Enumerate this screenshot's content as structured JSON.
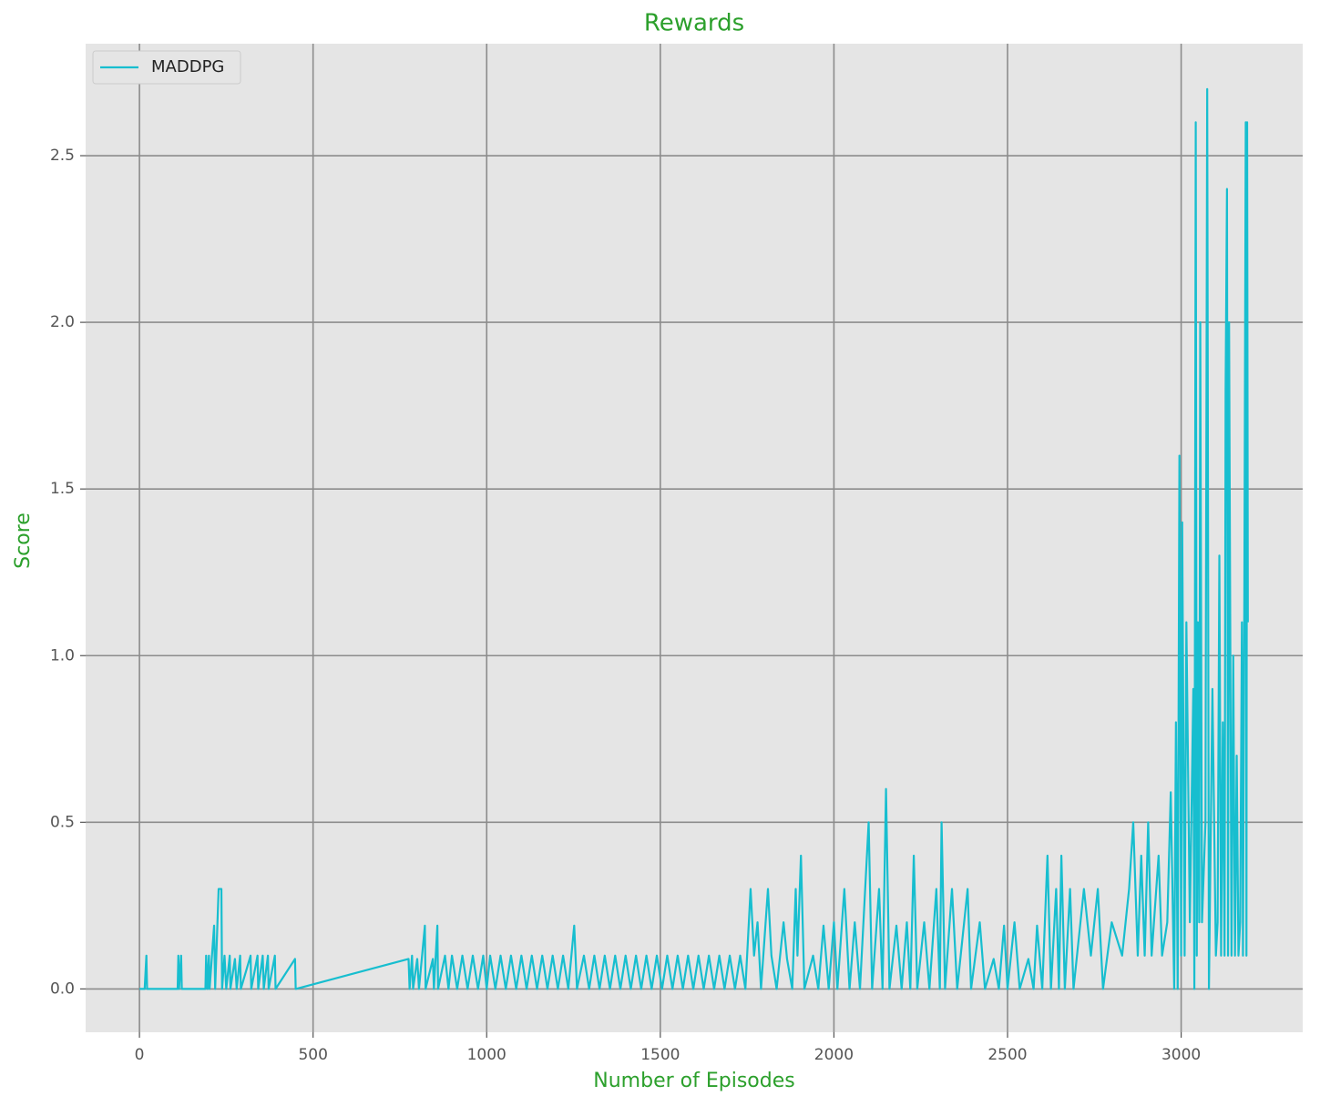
{
  "chart_data": {
    "type": "line",
    "title": "Rewards",
    "x_label": "Number of Episodes",
    "y_label": "Score",
    "x": [
      0,
      15,
      20,
      22,
      110,
      112,
      114,
      120,
      122,
      190,
      192,
      196,
      200,
      202,
      215,
      218,
      228,
      236,
      238,
      245,
      250,
      260,
      262,
      275,
      280,
      290,
      292,
      320,
      322,
      340,
      342,
      355,
      358,
      370,
      372,
      390,
      392,
      448,
      450,
      775,
      778,
      785,
      788,
      800,
      805,
      822,
      824,
      845,
      848,
      858,
      860,
      880,
      890,
      900,
      915,
      930,
      945,
      960,
      975,
      990,
      1000,
      1010,
      1025,
      1040,
      1055,
      1070,
      1085,
      1100,
      1115,
      1130,
      1145,
      1160,
      1175,
      1190,
      1205,
      1220,
      1235,
      1252,
      1260,
      1280,
      1295,
      1310,
      1325,
      1340,
      1355,
      1370,
      1385,
      1400,
      1415,
      1430,
      1445,
      1460,
      1475,
      1490,
      1505,
      1520,
      1535,
      1550,
      1565,
      1580,
      1595,
      1610,
      1625,
      1640,
      1655,
      1670,
      1685,
      1700,
      1715,
      1730,
      1745,
      1760,
      1770,
      1780,
      1790,
      1810,
      1820,
      1835,
      1855,
      1865,
      1880,
      1890,
      1895,
      1905,
      1915,
      1940,
      1955,
      1970,
      1985,
      2000,
      2010,
      2030,
      2045,
      2060,
      2075,
      2100,
      2110,
      2130,
      2140,
      2150,
      2160,
      2180,
      2195,
      2210,
      2220,
      2230,
      2240,
      2260,
      2275,
      2295,
      2305,
      2310,
      2320,
      2340,
      2355,
      2385,
      2395,
      2420,
      2435,
      2460,
      2475,
      2490,
      2500,
      2520,
      2535,
      2560,
      2575,
      2585,
      2600,
      2615,
      2625,
      2640,
      2648,
      2655,
      2665,
      2680,
      2690,
      2720,
      2740,
      2760,
      2775,
      2800,
      2830,
      2850,
      2862,
      2875,
      2885,
      2895,
      2905,
      2915,
      2935,
      2945,
      2960,
      2970,
      2980,
      2985,
      2990,
      2995,
      3000,
      3003,
      3010,
      3015,
      3025,
      3035,
      3038,
      3042,
      3045,
      3048,
      3052,
      3055,
      3060,
      3070,
      3075,
      3080,
      3090,
      3100,
      3105,
      3110,
      3115,
      3120,
      3125,
      3128,
      3132,
      3135,
      3138,
      3145,
      3150,
      3155,
      3160,
      3165,
      3170,
      3175,
      3178,
      3182,
      3186,
      3188,
      3190,
      3192
    ],
    "series": [
      {
        "name": "MADDPG",
        "color": "#17becf",
        "values": [
          0,
          0,
          0.1,
          0,
          0,
          0.1,
          0,
          0.1,
          0,
          0,
          0.1,
          0,
          0.1,
          0,
          0.19,
          0,
          0.3,
          0.3,
          0,
          0.1,
          0,
          0.1,
          0,
          0.09,
          0,
          0.1,
          0,
          0.1,
          0,
          0.1,
          0,
          0.1,
          0,
          0.1,
          0,
          0.1,
          0,
          0.09,
          0,
          0.09,
          0,
          0.1,
          0,
          0.09,
          0,
          0.19,
          0,
          0.09,
          0,
          0.19,
          0,
          0.1,
          0,
          0.1,
          0,
          0.1,
          0,
          0.1,
          0,
          0.1,
          0,
          0.1,
          0,
          0.1,
          0,
          0.1,
          0,
          0.1,
          0,
          0.1,
          0,
          0.1,
          0,
          0.1,
          0,
          0.1,
          0,
          0.19,
          0,
          0.1,
          0,
          0.1,
          0,
          0.1,
          0,
          0.1,
          0,
          0.1,
          0,
          0.1,
          0,
          0.1,
          0,
          0.1,
          0,
          0.1,
          0,
          0.1,
          0,
          0.1,
          0,
          0.1,
          0,
          0.1,
          0,
          0.1,
          0,
          0.1,
          0,
          0.1,
          0,
          0.3,
          0.1,
          0.2,
          0,
          0.3,
          0.1,
          0,
          0.2,
          0.09,
          0,
          0.3,
          0.1,
          0.4,
          0,
          0.1,
          0,
          0.19,
          0,
          0.2,
          0,
          0.3,
          0,
          0.2,
          0,
          0.5,
          0,
          0.3,
          0,
          0.6,
          0,
          0.19,
          0,
          0.2,
          0,
          0.4,
          0,
          0.2,
          0,
          0.3,
          0,
          0.5,
          0,
          0.3,
          0,
          0.3,
          0,
          0.2,
          0,
          0.09,
          0,
          0.19,
          0,
          0.2,
          0,
          0.09,
          0,
          0.19,
          0,
          0.4,
          0,
          0.3,
          0,
          0.4,
          0,
          0.3,
          0,
          0.3,
          0.1,
          0.3,
          0,
          0.2,
          0.1,
          0.3,
          0.5,
          0.1,
          0.4,
          0.1,
          0.5,
          0.1,
          0.4,
          0.1,
          0.2,
          0.59,
          0,
          0.8,
          0,
          1.6,
          0.1,
          1.4,
          0.1,
          1.1,
          0.2,
          0.9,
          0,
          2.6,
          0.1,
          1.1,
          0.2,
          2.0,
          0.2,
          0.5,
          2.7,
          0,
          0.9,
          0.1,
          0.2,
          1.3,
          0.1,
          0.8,
          0.1,
          1.8,
          2.4,
          0.1,
          2.0,
          0.1,
          1.0,
          0.1,
          0.7,
          0.1,
          0.2,
          1.1,
          0.1,
          1.2,
          2.6,
          0.1,
          2.6,
          1.1
        ]
      }
    ],
    "xlim": [
      -155,
      3350
    ],
    "ylim": [
      -0.13,
      2.836
    ],
    "xticks": [
      0,
      500,
      1000,
      1500,
      2000,
      2500,
      3000
    ],
    "yticks": [
      {
        "value": 0,
        "label": "0.0"
      },
      0.5,
      {
        "value": 1,
        "label": "1.0"
      },
      1.5,
      {
        "value": 2,
        "label": "2.0"
      },
      2.5
    ],
    "grid": true,
    "legend": "upper left"
  }
}
